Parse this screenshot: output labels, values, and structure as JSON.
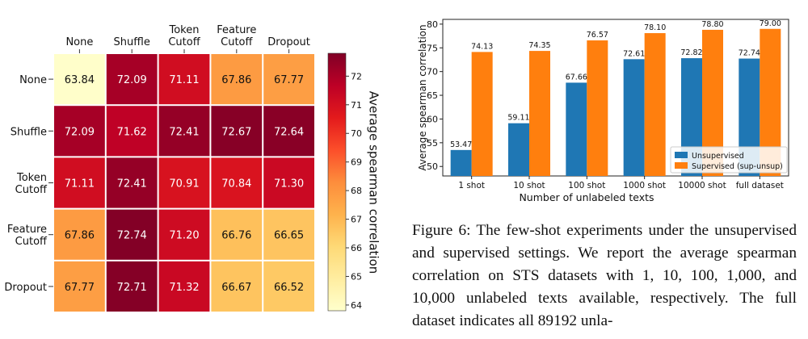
{
  "chart_data": [
    {
      "type": "heatmap",
      "rows": [
        "None",
        "Shuffle",
        "Token Cutoff",
        "Feature Cutoff",
        "Dropout"
      ],
      "columns": [
        "None",
        "Shuffle",
        "Token Cutoff",
        "Feature Cutoff",
        "Dropout"
      ],
      "values": [
        [
          63.84,
          72.09,
          71.11,
          67.86,
          67.77
        ],
        [
          72.09,
          71.62,
          72.41,
          72.67,
          72.64
        ],
        [
          71.11,
          72.41,
          70.91,
          70.84,
          71.3
        ],
        [
          67.86,
          72.74,
          71.2,
          66.76,
          66.65
        ],
        [
          67.77,
          72.71,
          71.32,
          66.67,
          66.52
        ]
      ],
      "colorbar_label": "Average spearman correlation",
      "colorbar_ticks": [
        "64",
        "65",
        "66",
        "67",
        "68",
        "69",
        "70",
        "71",
        "72"
      ],
      "colorbar_range": [
        63.8,
        72.8
      ],
      "colormap": "YlOrRd"
    },
    {
      "type": "bar",
      "categories": [
        "1 shot",
        "10 shot",
        "100 shot",
        "1000 shot",
        "10000 shot",
        "full dataset"
      ],
      "series": [
        {
          "name": "Unsupervised",
          "values": [
            53.47,
            59.11,
            67.66,
            72.61,
            72.82,
            72.74
          ],
          "color": "#1f77b4"
        },
        {
          "name": "Supervised (sup-unsup)",
          "values": [
            74.13,
            74.35,
            76.57,
            78.1,
            78.8,
            79.0
          ],
          "color": "#ff7f0e"
        }
      ],
      "xlabel": "Number of unlabeled texts",
      "ylabel": "Average spearman correlation",
      "ylim": [
        48,
        81
      ],
      "yticks": [
        "50",
        "55",
        "60",
        "65",
        "70",
        "75",
        "80"
      ],
      "legend": "bottom-right"
    }
  ],
  "caption": "Figure 6: The few-shot experiments under the unsupervised and supervised settings. We report the average spearman correlation on STS datasets with 1, 10, 100, 1,000, and 10,000 unlabeled texts available, respectively. The full dataset indicates all 89192 unla-"
}
